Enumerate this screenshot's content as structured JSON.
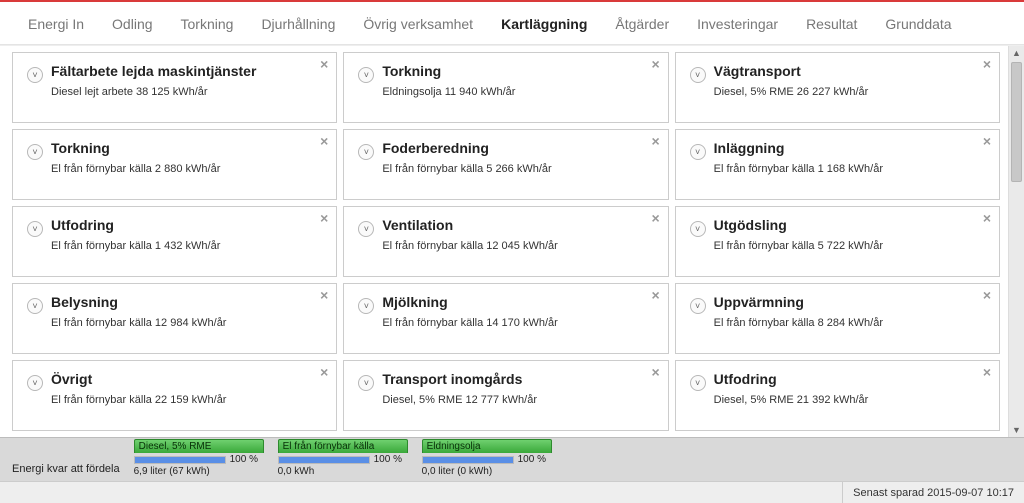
{
  "tabs": [
    {
      "label": "Energi In"
    },
    {
      "label": "Odling"
    },
    {
      "label": "Torkning"
    },
    {
      "label": "Djurhållning"
    },
    {
      "label": "Övrig verksamhet"
    },
    {
      "label": "Kartläggning",
      "active": true
    },
    {
      "label": "Åtgärder"
    },
    {
      "label": "Investeringar"
    },
    {
      "label": "Resultat"
    },
    {
      "label": "Grunddata"
    }
  ],
  "cards": [
    {
      "title": "Fältarbete lejda maskintjänster",
      "sub": "Diesel lejt arbete 38 125 kWh/år"
    },
    {
      "title": "Torkning",
      "sub": "Eldningsolja 11 940 kWh/år"
    },
    {
      "title": "Vägtransport",
      "sub": "Diesel, 5% RME 26 227 kWh/år"
    },
    {
      "title": "Torkning",
      "sub": "El från förnybar källa  2 880 kWh/år"
    },
    {
      "title": "Foderberedning",
      "sub": "El från förnybar källa  5 266 kWh/år"
    },
    {
      "title": "Inläggning",
      "sub": "El från förnybar källa  1 168 kWh/år"
    },
    {
      "title": "Utfodring",
      "sub": "El från förnybar källa  1 432 kWh/år"
    },
    {
      "title": "Ventilation",
      "sub": "El från förnybar källa  12 045 kWh/år"
    },
    {
      "title": "Utgödsling",
      "sub": "El från förnybar källa  5 722 kWh/år"
    },
    {
      "title": "Belysning",
      "sub": "El från förnybar källa  12 984 kWh/år"
    },
    {
      "title": "Mjölkning",
      "sub": "El från förnybar källa  14 170 kWh/år"
    },
    {
      "title": "Uppvärmning",
      "sub": "El från förnybar källa  8 284 kWh/år"
    },
    {
      "title": "Övrigt",
      "sub": "El från förnybar källa  22 159 kWh/år"
    },
    {
      "title": "Transport inomgårds",
      "sub": "Diesel, 5% RME 12 777 kWh/år"
    },
    {
      "title": "Utfodring",
      "sub": "Diesel, 5% RME 21 392 kWh/år"
    }
  ],
  "footer": {
    "label": "Energi kvar att fördela",
    "meters": [
      {
        "name": "Diesel, 5% RME",
        "pct": "100 %",
        "sub": "6,9 liter  (67 kWh)"
      },
      {
        "name": "El från förnybar källa",
        "pct": "100 %",
        "sub": "0,0 kWh"
      },
      {
        "name": "Eldningsolja",
        "pct": "100 %",
        "sub": "0,0 liter  (0 kWh)"
      }
    ]
  },
  "status": {
    "saved": "Senast sparad 2015-09-07 10:17"
  },
  "colors": {
    "accent_red": "#d93a3a",
    "header_green_top": "#6fd06f",
    "header_green_bottom": "#3aa83a",
    "meter_blue": "#5a8fe6",
    "card_border": "#cccccc",
    "footer_bg": "#d9d9d9"
  }
}
